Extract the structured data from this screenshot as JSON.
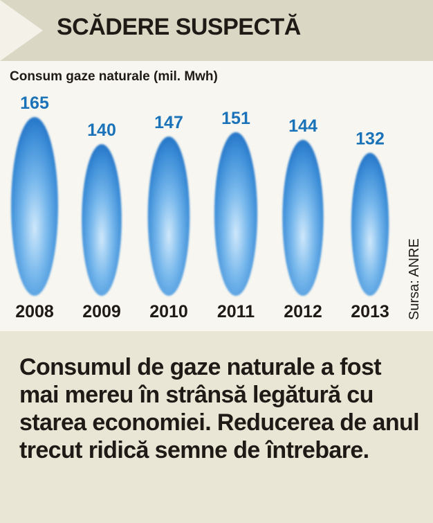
{
  "header": {
    "title": "SCĂDERE SUSPECTĂ"
  },
  "chart_data": {
    "type": "bar",
    "ylabel": "Consum gaze naturale (mil. Mwh)",
    "categories": [
      "2008",
      "2009",
      "2010",
      "2011",
      "2012",
      "2013"
    ],
    "values": [
      165,
      140,
      147,
      151,
      144,
      132
    ],
    "grid": false,
    "value_color": "#1a72b8"
  },
  "source": "Sursa: ANRE",
  "caption": "Consumul de gaze naturale a fost mai mereu în strânsă legătură cu starea economiei. Reducerea de anul trecut ridică semne de întrebare."
}
